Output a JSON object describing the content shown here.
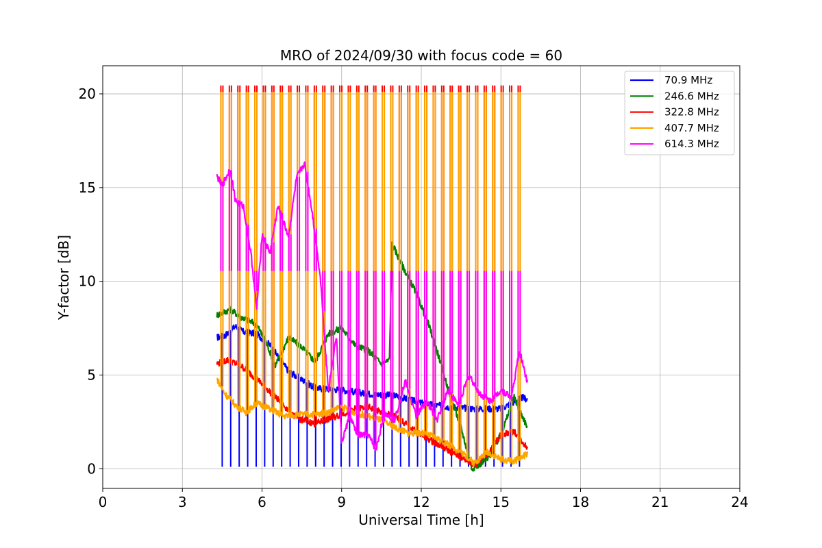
{
  "chart_data": {
    "type": "line",
    "title": "MRO of 2024/09/30 with focus code = 60",
    "xlabel": "Universal Time [h]",
    "ylabel": "Y-factor [dB]",
    "xlim": [
      0,
      24
    ],
    "ylim": [
      -1.05,
      21.5
    ],
    "xticks": [
      "0",
      "3",
      "6",
      "9",
      "12",
      "15",
      "18",
      "21",
      "24"
    ],
    "yticks": [
      "0",
      "5",
      "10",
      "15",
      "20"
    ],
    "grid": true,
    "legend_position": "top-right",
    "series": [
      {
        "name": " 70.9 MHz",
        "color": "#0000ff",
        "x": [
          4.3,
          4.6,
          5.0,
          5.3,
          5.8,
          6.3,
          7.0,
          8.0,
          9.0,
          10.0,
          11.0,
          12.0,
          13.0,
          14.0,
          15.0,
          15.8,
          16.0
        ],
        "y": [
          7.0,
          7.1,
          7.6,
          7.3,
          7.2,
          6.6,
          5.2,
          4.3,
          4.2,
          4.0,
          3.9,
          3.5,
          3.3,
          3.2,
          3.2,
          3.8,
          3.7
        ],
        "dips": {
          "start": 4.5,
          "step": 0.32,
          "end": 15.7,
          "value": 0.1
        }
      },
      {
        "name": "246.6 MHz",
        "color": "#008000",
        "x": [
          4.3,
          4.8,
          5.2,
          5.8,
          6.2,
          6.5,
          7.0,
          7.5,
          8.0,
          8.5,
          9.0,
          9.5,
          10.0,
          10.5,
          10.8,
          10.9,
          11.3,
          11.8,
          12.3,
          12.7,
          13.0,
          13.5,
          13.9,
          14.5,
          15.0,
          15.5,
          16.0
        ],
        "y": [
          8.2,
          8.5,
          8.1,
          7.7,
          6.6,
          5.5,
          7.0,
          6.5,
          5.7,
          7.2,
          7.5,
          6.6,
          6.3,
          5.6,
          5.8,
          12.0,
          10.8,
          9.4,
          7.6,
          5.8,
          4.3,
          2.2,
          0.0,
          0.5,
          1.8,
          3.8,
          2.2
        ],
        "dips": null
      },
      {
        "name": "322.8 MHz",
        "color": "#ff0000",
        "x": [
          4.3,
          4.7,
          5.2,
          5.8,
          6.3,
          6.8,
          7.3,
          8.0,
          9.0,
          9.5,
          10.0,
          10.5,
          11.0,
          11.5,
          12.0,
          12.5,
          13.0,
          13.5,
          14.0,
          14.5,
          15.0,
          15.5,
          16.0
        ],
        "y": [
          5.6,
          5.8,
          5.5,
          4.8,
          4.1,
          3.4,
          2.7,
          2.4,
          2.9,
          3.2,
          3.3,
          3.0,
          2.8,
          2.3,
          1.8,
          1.4,
          1.0,
          0.6,
          0.2,
          0.8,
          1.8,
          2.0,
          1.1
        ],
        "dips": null,
        "spikes": {
          "start": 4.45,
          "step": 0.32,
          "end": 15.8,
          "value": 20.45
        }
      },
      {
        "name": "407.7 MHz",
        "color": "#ffa500",
        "x": [
          4.3,
          4.6,
          5.0,
          5.4,
          5.8,
          6.3,
          6.8,
          7.3,
          8.0,
          8.5,
          9.0,
          9.5,
          10.0,
          10.5,
          11.0,
          11.5,
          12.0,
          12.5,
          13.0,
          13.5,
          14.0,
          14.5,
          15.0,
          15.5,
          16.0
        ],
        "y": [
          4.8,
          4.0,
          3.4,
          3.0,
          3.5,
          3.2,
          2.8,
          2.9,
          2.9,
          3.0,
          3.3,
          3.0,
          2.8,
          2.6,
          2.2,
          1.9,
          1.9,
          1.7,
          1.3,
          0.9,
          0.3,
          0.9,
          0.5,
          0.4,
          0.8
        ],
        "dips": null,
        "spikes": {
          "start": 4.45,
          "step": 0.32,
          "end": 15.8,
          "value": 20.1
        }
      },
      {
        "name": "614.3 MHz",
        "color": "#ff00ff",
        "x": [
          4.3,
          4.5,
          4.8,
          5.0,
          5.3,
          5.6,
          5.8,
          6.0,
          6.3,
          6.6,
          7.0,
          7.3,
          7.6,
          7.9,
          8.2,
          8.5,
          8.8,
          9.0,
          9.3,
          9.6,
          10.0,
          10.3,
          10.6,
          11.0,
          11.4,
          11.8,
          12.2,
          12.6,
          13.0,
          13.4,
          13.8,
          14.2,
          14.6,
          15.0,
          15.4,
          15.7,
          16.0
        ],
        "y": [
          15.6,
          15.1,
          16.0,
          14.3,
          14.0,
          11.3,
          8.5,
          12.5,
          11.5,
          14.0,
          12.4,
          15.5,
          16.3,
          13.6,
          10.2,
          4.2,
          7.1,
          1.4,
          2.8,
          1.8,
          1.8,
          1.0,
          3.0,
          2.6,
          4.7,
          2.8,
          3.6,
          2.6,
          4.2,
          3.4,
          5.0,
          4.0,
          3.6,
          4.2,
          3.8,
          6.3,
          4.6
        ],
        "dips": null,
        "spikes": {
          "start": 4.45,
          "step": 0.32,
          "end": 15.8,
          "value": 10.55
        }
      }
    ]
  }
}
